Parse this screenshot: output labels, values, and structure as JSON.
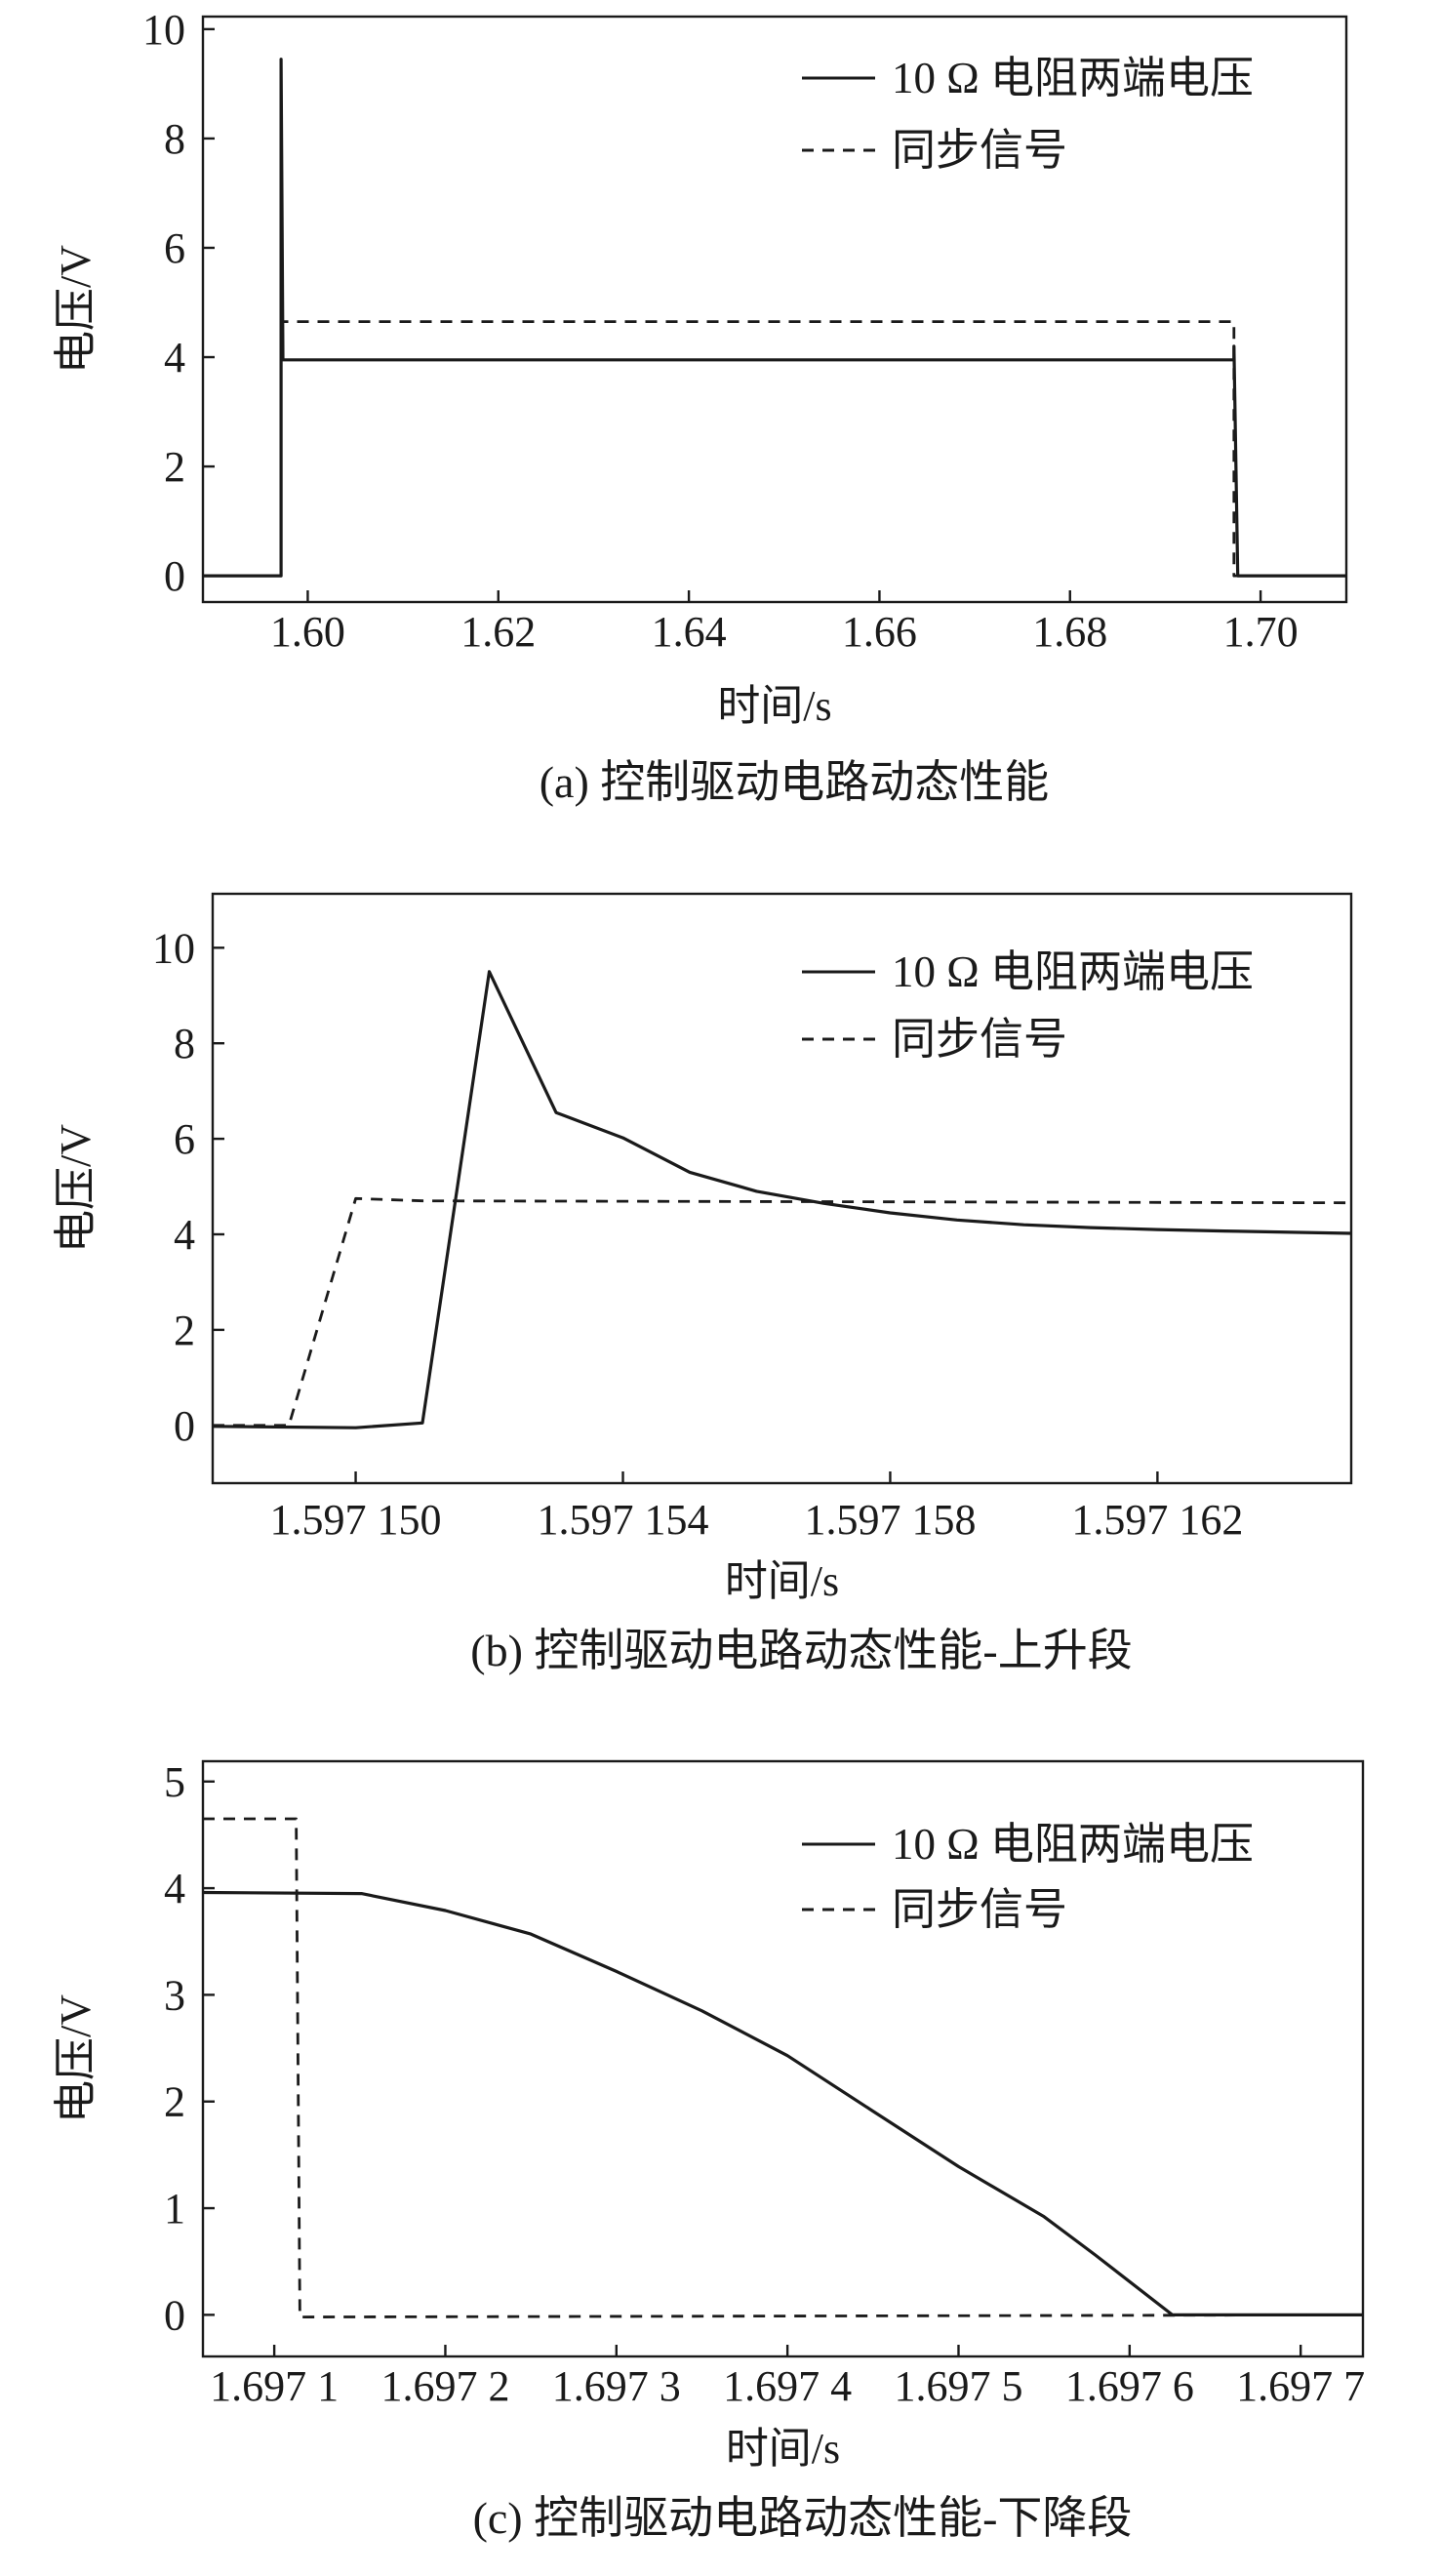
{
  "chart_data": [
    {
      "type": "line",
      "caption": "(a) 控制驱动电路动态性能",
      "xlabel": "时间/s",
      "ylabel": "电压/V",
      "xlim": [
        1.589,
        1.709
      ],
      "ylim": [
        -0.48,
        10.23
      ],
      "xticks": [
        1.6,
        1.62,
        1.64,
        1.66,
        1.68,
        1.7
      ],
      "xtick_labels": [
        "1.60",
        "1.62",
        "1.64",
        "1.66",
        "1.68",
        "1.70"
      ],
      "yticks": [
        0,
        2,
        4,
        6,
        8,
        10
      ],
      "ytick_labels": [
        "0",
        "2",
        "4",
        "6",
        "8",
        "10"
      ],
      "grid": false,
      "legend_position": "top-right",
      "series": [
        {
          "name": "10 Ω 电阻两端电压",
          "style": "solid",
          "color": "#1a1a1a",
          "points": [
            [
              1.589,
              0
            ],
            [
              1.5972,
              0
            ],
            [
              1.5972,
              9.45
            ],
            [
              1.5974,
              3.95
            ],
            [
              1.6972,
              3.95
            ],
            [
              1.6972,
              4.2
            ],
            [
              1.6976,
              0
            ],
            [
              1.709,
              0
            ]
          ]
        },
        {
          "name": "同步信号",
          "style": "dashed",
          "color": "#1a1a1a",
          "points": [
            [
              1.589,
              0
            ],
            [
              1.5972,
              0
            ],
            [
              1.5972,
              4.65
            ],
            [
              1.6972,
              4.65
            ],
            [
              1.6972,
              0
            ],
            [
              1.709,
              0
            ]
          ]
        }
      ]
    },
    {
      "type": "line",
      "caption": "(b) 控制驱动电路动态性能-上升段",
      "xlabel": "时间/s",
      "ylabel": "电压/V",
      "xlim": [
        1.59714786,
        1.5971649
      ],
      "ylim": [
        -1.21,
        11.13
      ],
      "xticks": [
        1.59715,
        1.597154,
        1.597158,
        1.597162
      ],
      "xtick_labels": [
        "1.597 150",
        "1.597 154",
        "1.597 158",
        "1.597 162"
      ],
      "yticks": [
        0,
        2,
        4,
        6,
        8,
        10
      ],
      "ytick_labels": [
        "0",
        "2",
        "4",
        "6",
        "8",
        "10"
      ],
      "grid": false,
      "legend_position": "top-right",
      "series": [
        {
          "name": "10 Ω 电阻两端电压",
          "style": "solid",
          "color": "#1a1a1a",
          "points": [
            [
              1.59714786,
              -0.02
            ],
            [
              1.59715,
              -0.05
            ],
            [
              1.597151,
              0.05
            ],
            [
              1.597152,
              9.5
            ],
            [
              1.597153,
              6.55
            ],
            [
              1.597154,
              6.02
            ],
            [
              1.597155,
              5.3
            ],
            [
              1.597156,
              4.9
            ],
            [
              1.597157,
              4.65
            ],
            [
              1.597158,
              4.45
            ],
            [
              1.597159,
              4.3
            ],
            [
              1.59716,
              4.2
            ],
            [
              1.597161,
              4.14
            ],
            [
              1.597162,
              4.1
            ],
            [
              1.597163,
              4.07
            ],
            [
              1.5971649,
              4.02
            ]
          ]
        },
        {
          "name": "同步信号",
          "style": "dashed",
          "color": "#1a1a1a",
          "points": [
            [
              1.59714786,
              0
            ],
            [
              1.597149,
              0
            ],
            [
              1.59715,
              4.75
            ],
            [
              1.597151,
              4.7
            ],
            [
              1.597158,
              4.68
            ],
            [
              1.5971649,
              4.66
            ]
          ]
        }
      ]
    },
    {
      "type": "line",
      "caption": "(c) 控制驱动电路动态性能-下降段",
      "xlabel": "时间/s",
      "ylabel": "电压/V",
      "xlim": [
        1.6970583,
        1.6977364
      ],
      "ylim": [
        -0.39,
        5.19
      ],
      "xticks": [
        1.6971,
        1.6972,
        1.6973,
        1.6974,
        1.6975,
        1.6976,
        1.6977
      ],
      "xtick_labels": [
        "1.697 1",
        "1.697 2",
        "1.697 3",
        "1.697 4",
        "1.697 5",
        "1.697 6",
        "1.697 7"
      ],
      "yticks": [
        0,
        1,
        2,
        3,
        4,
        5
      ],
      "ytick_labels": [
        "0",
        "1",
        "2",
        "3",
        "4",
        "5"
      ],
      "grid": false,
      "legend_position": "top-right",
      "series": [
        {
          "name": "10 Ω 电阻两端电压",
          "style": "solid",
          "color": "#1a1a1a",
          "points": [
            [
              1.6970583,
              3.96
            ],
            [
              1.697151,
              3.95
            ],
            [
              1.6972,
              3.79
            ],
            [
              1.69725,
              3.57
            ],
            [
              1.6973,
              3.22
            ],
            [
              1.69735,
              2.85
            ],
            [
              1.6974,
              2.43
            ],
            [
              1.69745,
              1.91
            ],
            [
              1.6975,
              1.39
            ],
            [
              1.69755,
              0.92
            ],
            [
              1.69758,
              0.56
            ],
            [
              1.697625,
              0
            ],
            [
              1.6977364,
              0
            ]
          ]
        },
        {
          "name": "同步信号",
          "style": "dashed",
          "color": "#1a1a1a",
          "points": [
            [
              1.6970583,
              4.65
            ],
            [
              1.6971128,
              4.65
            ],
            [
              1.697115,
              -0.02
            ],
            [
              1.6977364,
              0
            ]
          ]
        }
      ]
    }
  ]
}
